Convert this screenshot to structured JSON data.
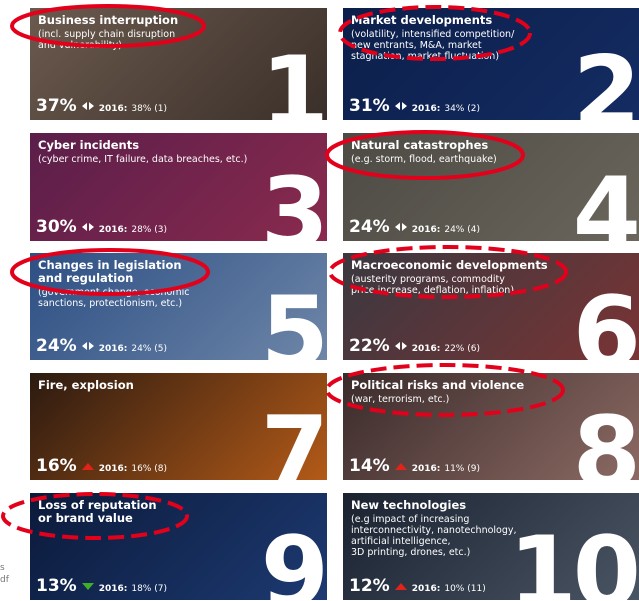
{
  "margin_text": [
    "s",
    "df"
  ],
  "tiles": [
    {
      "rank": "1",
      "title": [
        "Business interruption"
      ],
      "subtitle": [
        "(incl. supply chain disruption",
        "and vulnerability)"
      ],
      "share": "37%",
      "trend": "same",
      "year": "2016:",
      "previous": "38% (1)",
      "highlight": "solid",
      "colors": [
        "#6b5a4e",
        "#3a2f29"
      ]
    },
    {
      "rank": "2",
      "title": [
        "Market developments"
      ],
      "subtitle": [
        "(volatility, intensified competition/",
        "new entrants, M&A, market",
        "stagnation, market fluctuation)"
      ],
      "share": "31%",
      "trend": "same",
      "year": "2016:",
      "previous": "34% (2)",
      "highlight": "dashed",
      "colors": [
        "#0c1f4a",
        "#142c63"
      ]
    },
    {
      "rank": "3",
      "title": [
        "Cyber incidents"
      ],
      "subtitle": [
        "(cyber crime, IT failure, data breaches, etc.)"
      ],
      "share": "30%",
      "trend": "same",
      "year": "2016:",
      "previous": "28% (3)",
      "highlight": "none",
      "colors": [
        "#5a1e4a",
        "#8a2a4e"
      ]
    },
    {
      "rank": "4",
      "title": [
        "Natural catastrophes"
      ],
      "subtitle": [
        "(e.g. storm, flood, earthquake)"
      ],
      "share": "24%",
      "trend": "same",
      "year": "2016:",
      "previous": "24% (4)",
      "highlight": "solid",
      "colors": [
        "#4d4a44",
        "#6a665c"
      ]
    },
    {
      "rank": "5",
      "title": [
        "Changes in legislation",
        "and regulation"
      ],
      "subtitle": [
        "(government change, economic",
        "sanctions, protectionism, etc.)"
      ],
      "share": "24%",
      "trend": "same",
      "year": "2016:",
      "previous": "24% (5)",
      "highlight": "solid",
      "colors": [
        "#2d4f84",
        "#6e86a8"
      ]
    },
    {
      "rank": "6",
      "title": [
        "Macroeconomic developments"
      ],
      "subtitle": [
        "(austerity programs, commodity",
        "price increase, deflation, inflation)"
      ],
      "share": "22%",
      "trend": "same",
      "year": "2016:",
      "previous": "22% (6)",
      "highlight": "dashed",
      "colors": [
        "#3a3840",
        "#7a3434"
      ]
    },
    {
      "rank": "7",
      "title": [
        "Fire, explosion"
      ],
      "subtitle": [],
      "share": "16%",
      "trend": "up",
      "year": "2016:",
      "previous": "16% (8)",
      "highlight": "none",
      "colors": [
        "#2b1a10",
        "#b35a18"
      ]
    },
    {
      "rank": "8",
      "title": [
        "Political risks and violence"
      ],
      "subtitle": [
        "(war, terrorism, etc.)"
      ],
      "share": "14%",
      "trend": "up",
      "year": "2016:",
      "previous": "11% (9)",
      "highlight": "dashed",
      "colors": [
        "#3a2b2b",
        "#8c6a63"
      ]
    },
    {
      "rank": "9",
      "title": [
        "Loss of reputation",
        "or brand value"
      ],
      "subtitle": [],
      "share": "13%",
      "trend": "down",
      "year": "2016:",
      "previous": "18% (7)",
      "highlight": "dashed",
      "colors": [
        "#0b1a3a",
        "#1d3a72"
      ]
    },
    {
      "rank": "10",
      "title": [
        "New technologies"
      ],
      "subtitle": [
        "(e.g impact of increasing",
        "interconnectivity, nanotechnology,",
        "artificial intelligence,",
        "3D printing, drones, etc.)"
      ],
      "share": "12%",
      "trend": "up",
      "year": "2016:",
      "previous": "10% (11)",
      "highlight": "none",
      "colors": [
        "#1a2230",
        "#4a5564"
      ]
    }
  ]
}
